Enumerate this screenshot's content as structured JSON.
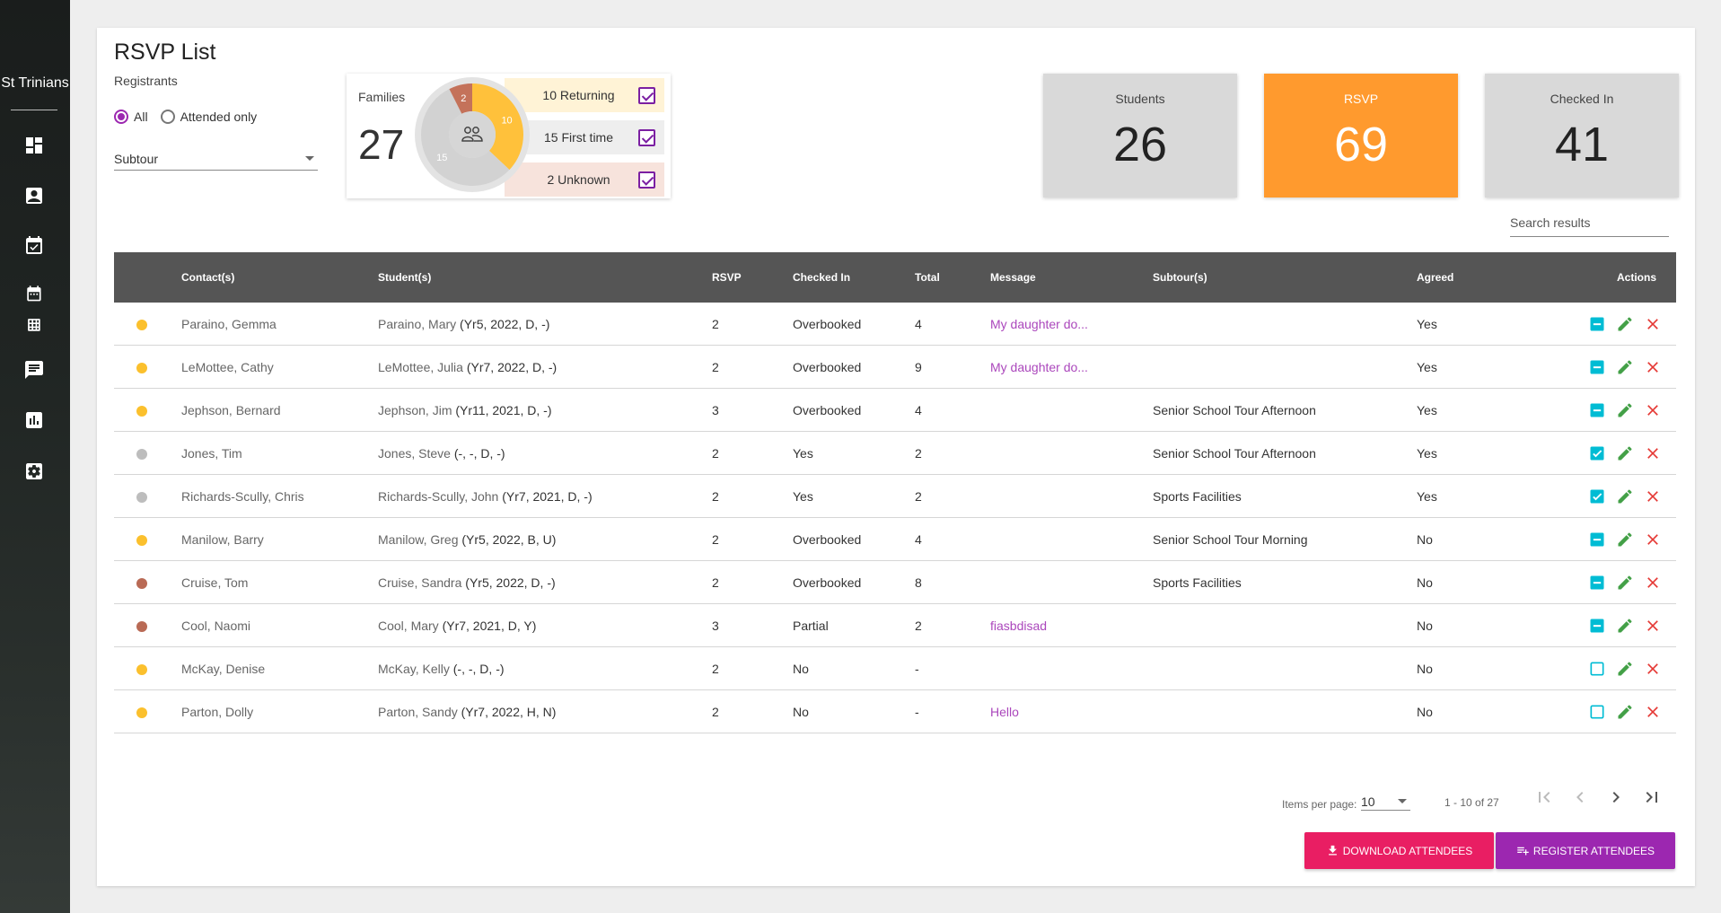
{
  "sidebar": {
    "brand": "St Trinians",
    "icons": [
      "dashboard-icon",
      "contact-icon",
      "event-icon",
      "calendar-icon",
      "grid-icon",
      "chat-icon",
      "chart-icon",
      "settings-icon"
    ]
  },
  "page": {
    "title": "RSVP List",
    "registrants_label": "Registrants",
    "filter_all": "All",
    "filter_attended": "Attended only",
    "subtour_placeholder": "Subtour",
    "search_placeholder": "Search results"
  },
  "families": {
    "label": "Families",
    "count": "27",
    "donut": [
      {
        "label": "10",
        "value": 10,
        "color": "#ffc13b"
      },
      {
        "label": "15",
        "value": 15,
        "color": "#d2d2d2"
      },
      {
        "label": "2",
        "value": 2,
        "color": "#c4725a"
      }
    ],
    "legend": [
      {
        "label": "10 Returning",
        "bg": "#fff3d6"
      },
      {
        "label": "15 First time",
        "bg": "#eeeeee"
      },
      {
        "label": "2 Unknown",
        "bg": "#f7e3dc"
      }
    ]
  },
  "stats": {
    "students_label": "Students",
    "students_value": "26",
    "rsvp_label": "RSVP",
    "rsvp_value": "69",
    "checked_label": "Checked In",
    "checked_value": "41"
  },
  "colors": {
    "returning": "#fbc02d",
    "first_time": "#bdbdbd",
    "unknown": "#b96a55",
    "teal": "#00bcd4",
    "green": "#43a047",
    "red": "#e53935"
  },
  "table": {
    "headers": {
      "contact": "Contact(s)",
      "student": "Student(s)",
      "rsvp": "RSVP",
      "checked_in": "Checked In",
      "total": "Total",
      "message": "Message",
      "subtour": "Subtour(s)",
      "agreed": "Agreed",
      "actions": "Actions"
    },
    "rows": [
      {
        "status": "returning",
        "contact": "Paraino, Gemma",
        "student_name": "Paraino, Mary",
        "student_info": " (Yr5, 2022, D, -)",
        "rsvp": "2",
        "checked_in": "Overbooked",
        "total": "4",
        "message": "My daughter do...",
        "subtour": "",
        "agreed": "Yes",
        "check": "partial"
      },
      {
        "status": "returning",
        "contact": "LeMottee, Cathy",
        "student_name": "LeMottee, Julia",
        "student_info": " (Yr7, 2022, D, -)",
        "rsvp": "2",
        "checked_in": "Overbooked",
        "total": "9",
        "message": "My daughter do...",
        "subtour": "",
        "agreed": "Yes",
        "check": "partial"
      },
      {
        "status": "returning",
        "contact": "Jephson, Bernard",
        "student_name": "Jephson, Jim",
        "student_info": " (Yr11, 2021, D, -)",
        "rsvp": "3",
        "checked_in": "Overbooked",
        "total": "4",
        "message": "",
        "subtour": "Senior School Tour Afternoon",
        "agreed": "Yes",
        "check": "partial"
      },
      {
        "status": "first_time",
        "contact": "Jones, Tim",
        "student_name": "Jones, Steve",
        "student_info": " (-, -, D, -)",
        "rsvp": "2",
        "checked_in": "Yes",
        "total": "2",
        "message": "",
        "subtour": "Senior School Tour Afternoon",
        "agreed": "Yes",
        "check": "checked"
      },
      {
        "status": "first_time",
        "contact": "Richards-Scully, Chris",
        "student_name": "Richards-Scully, John",
        "student_info": " (Yr7, 2021, D, -)",
        "rsvp": "2",
        "checked_in": "Yes",
        "total": "2",
        "message": "",
        "subtour": "Sports Facilities",
        "agreed": "Yes",
        "check": "checked"
      },
      {
        "status": "returning",
        "contact": "Manilow, Barry",
        "student_name": "Manilow, Greg",
        "student_info": " (Yr5, 2022, B, U)",
        "rsvp": "2",
        "checked_in": "Overbooked",
        "total": "4",
        "message": "",
        "subtour": "Senior School Tour Morning",
        "agreed": "No",
        "check": "partial"
      },
      {
        "status": "unknown",
        "contact": "Cruise, Tom",
        "student_name": "Cruise, Sandra",
        "student_info": " (Yr5, 2022, D, -)",
        "rsvp": "2",
        "checked_in": "Overbooked",
        "total": "8",
        "message": "",
        "subtour": "Sports Facilities",
        "agreed": "No",
        "check": "partial"
      },
      {
        "status": "unknown",
        "contact": "Cool, Naomi",
        "student_name": "Cool, Mary",
        "student_info": " (Yr7, 2021, D, Y)",
        "rsvp": "3",
        "checked_in": "Partial",
        "total": "2",
        "message": "fiasbdisad",
        "subtour": "",
        "agreed": "No",
        "check": "partial"
      },
      {
        "status": "returning",
        "contact": "McKay, Denise",
        "student_name": "McKay, Kelly",
        "student_info": " (-, -, D, -)",
        "rsvp": "2",
        "checked_in": "No",
        "total": "-",
        "message": "",
        "subtour": "",
        "agreed": "No",
        "check": "empty"
      },
      {
        "status": "returning",
        "contact": "Parton, Dolly",
        "student_name": "Parton, Sandy",
        "student_info": " (Yr7, 2022, H, N)",
        "rsvp": "2",
        "checked_in": "No",
        "total": "-",
        "message": "Hello",
        "subtour": "",
        "agreed": "No",
        "check": "empty"
      }
    ]
  },
  "paginator": {
    "items_per_page_label": "Items per page:",
    "items_per_page": "10",
    "range": "1 - 10 of 27"
  },
  "buttons": {
    "download": "DOWNLOAD ATTENDEES",
    "register": "REGISTER ATTENDEES"
  }
}
